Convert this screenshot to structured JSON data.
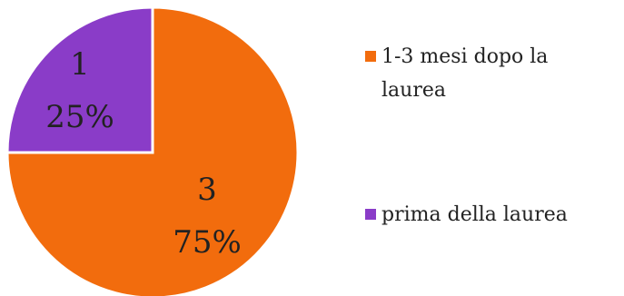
{
  "chart_data": {
    "type": "pie",
    "slices": [
      {
        "name": "1-3 mesi dopo la laurea",
        "value": 3,
        "percent": "75%",
        "color": "#F26C0D"
      },
      {
        "name": "prima della laurea",
        "value": 1,
        "percent": "25%",
        "color": "#8A3CC8"
      }
    ],
    "legend_position": "right",
    "legend": {
      "item1_line1": "1-3 mesi dopo la",
      "item1_line2": "laurea",
      "item2": "prima della laurea"
    }
  }
}
